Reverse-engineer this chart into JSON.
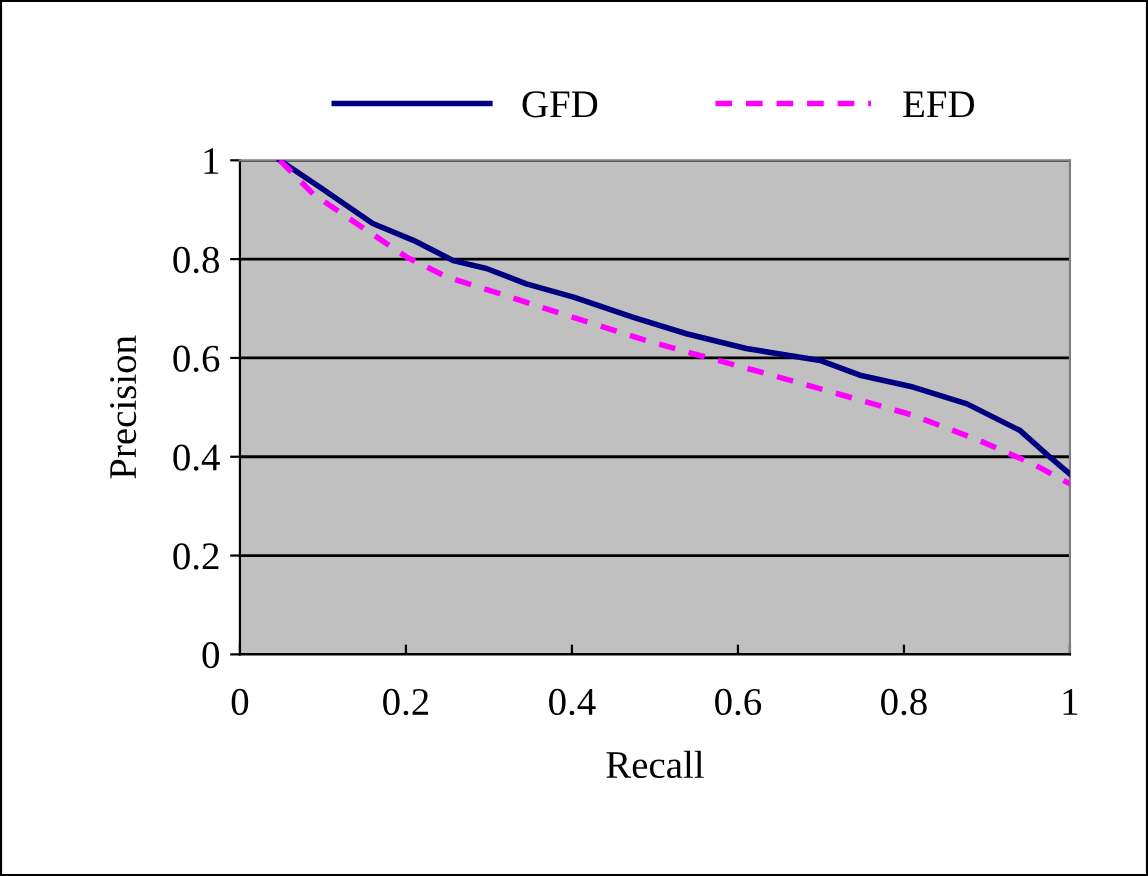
{
  "chart_data": {
    "type": "line",
    "xlabel": "Recall",
    "ylabel": "Precision",
    "xlim": [
      0,
      1
    ],
    "ylim": [
      0,
      1
    ],
    "xticks": [
      0,
      0.2,
      0.4,
      0.6,
      0.8,
      1
    ],
    "yticks": [
      0,
      0.2,
      0.4,
      0.6,
      0.8,
      1
    ],
    "grid": "y",
    "legend": "top",
    "series": [
      {
        "name": "GFD",
        "color": "#000080",
        "line_style": "solid",
        "x": [
          0.048,
          0.096,
          0.16,
          0.209,
          0.257,
          0.297,
          0.345,
          0.402,
          0.474,
          0.538,
          0.61,
          0.699,
          0.747,
          0.811,
          0.876,
          0.94,
          0.972,
          1.0
        ],
        "values": [
          1.0,
          0.946,
          0.872,
          0.838,
          0.797,
          0.781,
          0.75,
          0.723,
          0.682,
          0.649,
          0.619,
          0.595,
          0.565,
          0.541,
          0.507,
          0.453,
          0.405,
          0.365
        ]
      },
      {
        "name": "EFD",
        "color": "#ff00ff",
        "line_style": "dashed",
        "x": [
          0.048,
          0.088,
          0.153,
          0.201,
          0.249,
          0.313,
          0.394,
          0.49,
          0.554,
          0.635,
          0.715,
          0.811,
          0.892,
          0.956,
          1.0
        ],
        "values": [
          1.0,
          0.932,
          0.858,
          0.804,
          0.764,
          0.73,
          0.686,
          0.635,
          0.605,
          0.568,
          0.53,
          0.484,
          0.432,
          0.385,
          0.345
        ]
      }
    ]
  }
}
